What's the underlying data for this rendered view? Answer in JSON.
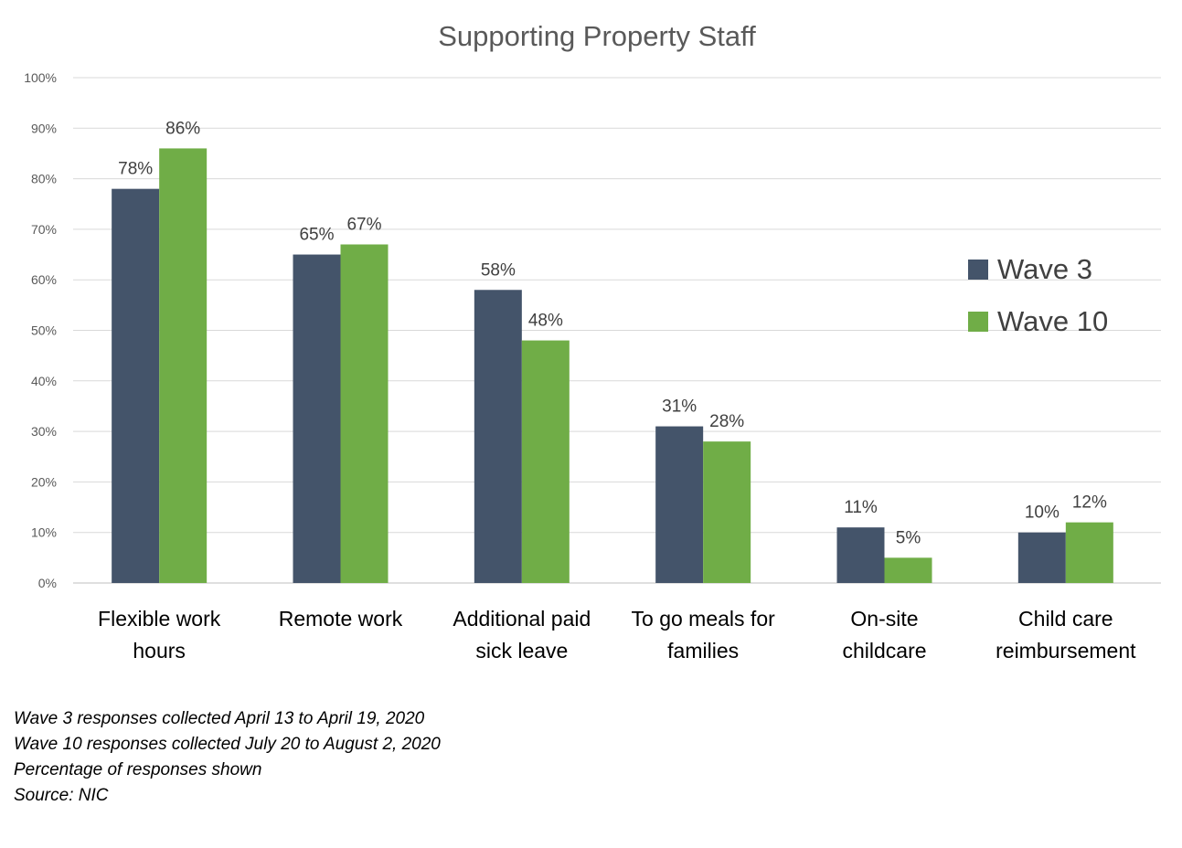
{
  "chart_data": {
    "type": "bar",
    "title": "Supporting Property Staff",
    "categories": [
      [
        "Flexible work",
        "hours"
      ],
      [
        "Remote work"
      ],
      [
        "Additional paid",
        "sick leave"
      ],
      [
        "To go meals for",
        "families"
      ],
      [
        "On-site",
        "childcare"
      ],
      [
        "Child care",
        "reimbursement"
      ]
    ],
    "series": [
      {
        "name": "Wave 3",
        "color": "#44546a",
        "values": [
          78,
          65,
          58,
          31,
          11,
          10
        ],
        "labels": [
          "78%",
          "65%",
          "58%",
          "31%",
          "11%",
          "10%"
        ]
      },
      {
        "name": "Wave 10",
        "color": "#70ad47",
        "values": [
          86,
          67,
          48,
          28,
          5,
          12
        ],
        "labels": [
          "86%",
          "67%",
          "48%",
          "28%",
          "5%",
          "12%"
        ]
      }
    ],
    "ylim": [
      0,
      100
    ],
    "yticks": [
      "0%",
      "10%",
      "20%",
      "30%",
      "40%",
      "50%",
      "60%",
      "70%",
      "80%",
      "90%",
      "100%"
    ],
    "grid": true,
    "legend": "right"
  },
  "notes": [
    "Wave 3 responses collected April 13 to April 19, 2020",
    "Wave 10 responses collected July 20 to August 2, 2020",
    "Percentage of responses shown",
    "Source: NIC"
  ]
}
